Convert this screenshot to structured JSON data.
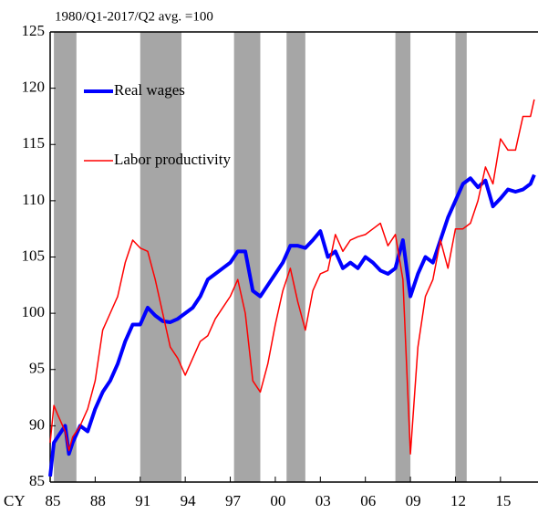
{
  "chart_data": {
    "type": "line",
    "subtitle": "1980/Q1-2017/Q2 avg. =100",
    "x_label": "CY",
    "x": [
      1985,
      1985.25,
      1985.5,
      1986,
      1986.25,
      1986.5,
      1987,
      1987.5,
      1988,
      1988.5,
      1989,
      1989.5,
      1990,
      1990.5,
      1991,
      1991.5,
      1992,
      1992.5,
      1993,
      1993.5,
      1994,
      1994.5,
      1995,
      1995.5,
      1996,
      1996.5,
      1997,
      1997.5,
      1998,
      1998.5,
      1999,
      1999.5,
      2000,
      2000.5,
      2001,
      2001.5,
      2002,
      2002.5,
      2003,
      2003.5,
      2004,
      2004.5,
      2005,
      2005.5,
      2006,
      2006.5,
      2007,
      2007.5,
      2008,
      2008.5,
      2009,
      2009.5,
      2010,
      2010.5,
      2011,
      2011.5,
      2012,
      2012.5,
      2013,
      2013.5,
      2014,
      2014.5,
      2015,
      2015.5,
      2016,
      2016.5,
      2017,
      2017.25
    ],
    "series": [
      {
        "name": "Real wages",
        "color": "#0000ff",
        "width": 4,
        "values": [
          85.5,
          88.5,
          89,
          90,
          87.5,
          88.5,
          90,
          89.5,
          91.5,
          93,
          94,
          95.5,
          97.5,
          99,
          99,
          100.5,
          99.8,
          99.3,
          99.2,
          99.5,
          100,
          100.5,
          101.5,
          103,
          103.5,
          104,
          104.5,
          105.5,
          105.5,
          102,
          101.5,
          102.5,
          103.5,
          104.5,
          106,
          106,
          105.8,
          106.5,
          107.3,
          105,
          105.5,
          104,
          104.5,
          104,
          105,
          104.5,
          103.8,
          103.5,
          104,
          106.5,
          101.5,
          103.5,
          105,
          104.5,
          106.5,
          108.5,
          110,
          111.5,
          112,
          111.2,
          111.8,
          109.5,
          110.2,
          111,
          110.8,
          111,
          111.5,
          112.3
        ]
      },
      {
        "name": "Labor productivity",
        "color": "#ff0000",
        "width": 1.5,
        "values": [
          88.5,
          91.8,
          91,
          89.5,
          87.8,
          89,
          90,
          91.5,
          94,
          98.5,
          100,
          101.5,
          104.5,
          106.5,
          105.8,
          105.5,
          103,
          100,
          97,
          96,
          94.5,
          96,
          97.5,
          98,
          99.5,
          100.5,
          101.5,
          103,
          100,
          94,
          93,
          95.5,
          99,
          102,
          104,
          101,
          98.5,
          102,
          103.5,
          103.8,
          107,
          105.5,
          106.5,
          106.8,
          107,
          107.5,
          108,
          106,
          107,
          103,
          87.5,
          97,
          101.5,
          103,
          106.5,
          104,
          107.5,
          107.5,
          108,
          110,
          113,
          111.5,
          115.5,
          114.5,
          114.5,
          117.5,
          117.5,
          119
        ]
      }
    ],
    "shaded_periods": [
      [
        1985.25,
        1986.75
      ],
      [
        1991,
        1993.75
      ],
      [
        1997.25,
        1999
      ],
      [
        2000.75,
        2002
      ],
      [
        2008,
        2009
      ],
      [
        2012,
        2012.75
      ]
    ],
    "shade_color": "#a6a6a6",
    "xlim": [
      1985,
      2017.5
    ],
    "ylim": [
      85,
      125
    ],
    "xticks": [
      {
        "value": 1985,
        "label": "85"
      },
      {
        "value": 1988,
        "label": "88"
      },
      {
        "value": 1991,
        "label": "91"
      },
      {
        "value": 1994,
        "label": "94"
      },
      {
        "value": 1997,
        "label": "97"
      },
      {
        "value": 2000,
        "label": "00"
      },
      {
        "value": 2003,
        "label": "03"
      },
      {
        "value": 2006,
        "label": "06"
      },
      {
        "value": 2009,
        "label": "09"
      },
      {
        "value": 2012,
        "label": "12"
      },
      {
        "value": 2015,
        "label": "15"
      }
    ],
    "yticks": [
      85,
      90,
      95,
      100,
      105,
      110,
      115,
      120,
      125
    ]
  }
}
